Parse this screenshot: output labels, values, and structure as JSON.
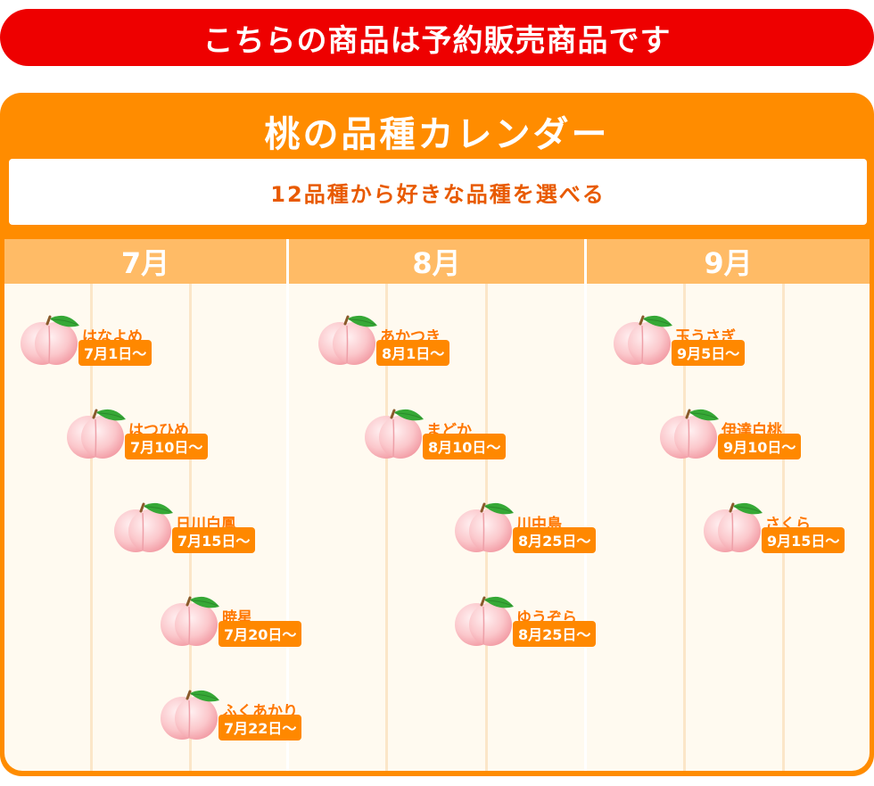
{
  "banner": {
    "text": "こちらの商品は予約販売商品です"
  },
  "calendar": {
    "title": "桃の品種カレンダー",
    "subtitle": "12品種から好きな品種を選べる",
    "months": [
      {
        "label": "7月",
        "varieties": [
          {
            "name": "はなよめ",
            "date": "7月1日〜"
          },
          {
            "name": "はつひめ",
            "date": "7月10日〜"
          },
          {
            "name": "日川白鳳",
            "date": "7月15日〜"
          },
          {
            "name": "暁星",
            "date": "7月20日〜"
          },
          {
            "name": "ふくあかり",
            "date": "7月22日〜"
          }
        ]
      },
      {
        "label": "8月",
        "varieties": [
          {
            "name": "あかつき",
            "date": "8月1日〜"
          },
          {
            "name": "まどか",
            "date": "8月10日〜"
          },
          {
            "name": "川中島",
            "date": "8月25日〜"
          },
          {
            "name": "ゆうぞら",
            "date": "8月25日〜"
          }
        ]
      },
      {
        "label": "9月",
        "varieties": [
          {
            "name": "玉うさぎ",
            "date": "9月5日〜"
          },
          {
            "name": "伊達白桃",
            "date": "9月10日〜"
          },
          {
            "name": "さくら",
            "date": "9月15日〜"
          }
        ]
      }
    ]
  },
  "icon": "peach-icon",
  "colors": {
    "banner": "#ee0000",
    "card": "#ff8c00",
    "month_header": "#ffbb66",
    "accent_text": "#ff7700",
    "peach": "#f7b2b8",
    "leaf": "#36a836"
  }
}
